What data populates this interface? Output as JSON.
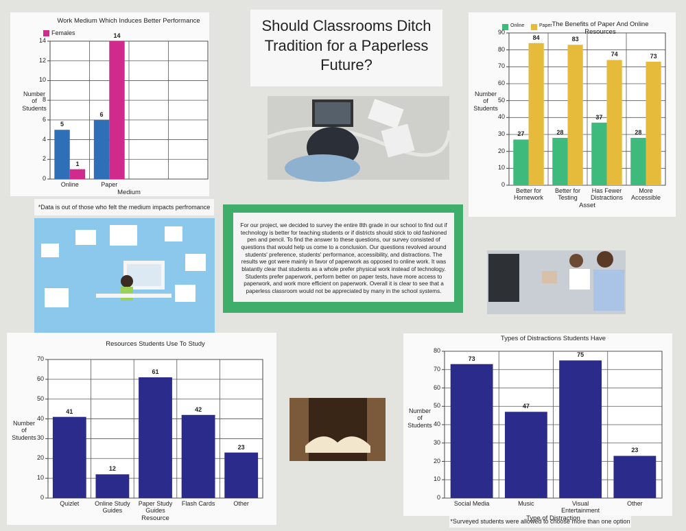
{
  "poster": {
    "title": "Should Classrooms Ditch Tradition for a Paperless Future?",
    "paragraph": "For our project, we decided to survey the entire 8th grade in our school to find out if technology is better for teaching students or if districts should stick to old fashioned pen and pencil. To find the answer to these questions, our survey consisted of questions that would help us come to a conclusion. Our questions revolved around students' preference, students' performance, accessibility, and distractions. The results we got were mainly in favor of paperwork as opposed to online work. It was blatantly clear that students as a whole prefer physical work instead of technology. Students prefer paperwork, perform better on paper tests, have more access to paperwork, and work more efficient on paperwork. Overall it is clear to see that a paperless classroom would not be appreciated by many in the school systems.",
    "note_performance": "*Data is out of those who felt the medium impacts perfromance",
    "note_distractions": "*Surveyed students were allowed to choose more than one option"
  },
  "chart_data": [
    {
      "type": "bar",
      "title": "Work Medium Which Induces Better Performance",
      "x_label": "Medium",
      "y_label": "Number of Students",
      "categories": [
        "Online",
        "Paper"
      ],
      "series": [
        {
          "color": "#2f6fb8",
          "values": [
            5,
            6
          ]
        },
        {
          "name": "Females",
          "color": "#d02a8c",
          "values": [
            1,
            14
          ]
        }
      ],
      "ylim": [
        0,
        14
      ],
      "yticks": [
        0,
        2,
        4,
        6,
        8,
        10,
        12,
        14
      ],
      "grid": true,
      "legend": "upper left"
    },
    {
      "type": "bar",
      "title": "The Benefits of Paper And Online Resources",
      "x_label": "Asset",
      "y_label": "Number of Students",
      "categories": [
        "Better for Homework",
        "Better for Testing",
        "Has Fewer Distractions",
        "More Accessible"
      ],
      "series": [
        {
          "name": "Online",
          "color": "#3dba7c",
          "values": [
            27,
            28,
            37,
            28
          ]
        },
        {
          "name": "Paper",
          "color": "#e6bb3c",
          "values": [
            84,
            83,
            74,
            73
          ]
        }
      ],
      "ylim": [
        0,
        90
      ],
      "yticks": [
        0,
        10,
        20,
        30,
        40,
        50,
        60,
        70,
        80,
        90
      ],
      "grid": true,
      "legend": "upper left"
    },
    {
      "type": "bar",
      "title": "Resources Students Use To Study",
      "x_label": "Resource",
      "y_label": "Number of Students",
      "categories": [
        "Quizlet",
        "Online Study Guides",
        "Paper Study Guides",
        "Flash Cards",
        "Other"
      ],
      "series": [
        {
          "color": "#2b2b8c",
          "values": [
            41,
            12,
            61,
            42,
            23
          ]
        }
      ],
      "ylim": [
        0,
        70
      ],
      "yticks": [
        0,
        10,
        20,
        30,
        40,
        50,
        60,
        70
      ],
      "grid": true
    },
    {
      "type": "bar",
      "title": "Types of Distractions Students Have",
      "x_label": "Type of Distraction",
      "y_label": "Number of Students",
      "categories": [
        "Social Media",
        "Music",
        "Visual Entertainment",
        "Other"
      ],
      "series": [
        {
          "color": "#2b2b8c",
          "values": [
            73,
            47,
            75,
            23
          ]
        }
      ],
      "ylim": [
        0,
        80
      ],
      "yticks": [
        0,
        10,
        20,
        30,
        40,
        50,
        60,
        70,
        80
      ],
      "grid": true
    }
  ]
}
